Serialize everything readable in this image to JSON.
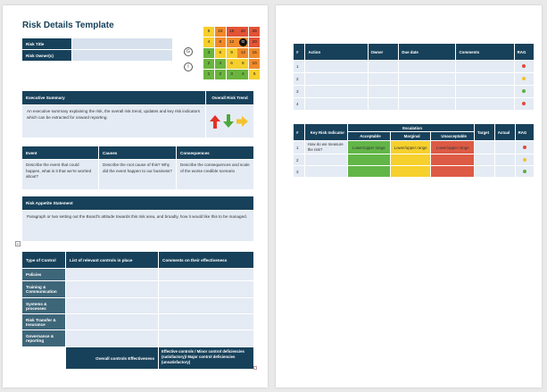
{
  "page1": {
    "title": "Risk Details Template",
    "risk_title_label": "Risk Title",
    "risk_owner_label": "Risk Owner(s)",
    "heatmap": {
      "rows": [
        [
          "5",
          "10",
          "15",
          "20",
          "25"
        ],
        [
          "4",
          "8",
          "12",
          "G",
          "20"
        ],
        [
          "3",
          "6",
          "9",
          "12",
          "15"
        ],
        [
          "2",
          "4",
          "6",
          "8",
          "10"
        ],
        [
          "1",
          "2",
          "3",
          "4",
          "5"
        ]
      ],
      "gross_marker": "G",
      "inherent_marker": "I"
    },
    "exec_summary": {
      "label": "Executive Summary",
      "trend_label": "Overall Risk Trend",
      "text": "An executive summary explaining the risk, the overall risk trend, updates and key risk indicators which can be extracted for onward reporting."
    },
    "event": {
      "label": "Event",
      "text": "Describe the event that could happen, what is it that we're worried about?"
    },
    "causes": {
      "label": "Causes",
      "text": "Describe the root cause of this? Why did the event happen to our business?"
    },
    "consequences": {
      "label": "Consequences",
      "text": "Describe the consequences and scale of the worse credible scenario"
    },
    "appetite": {
      "label": "Risk Appetite Statement",
      "text": "Paragraph or two setting out the Board's attitude towards this risk area, and broadly, how it would like this to be managed."
    },
    "controls": {
      "col1": "Type of Control",
      "col2": "List of relevant controls in place",
      "col3": "Comments on their effectiveness",
      "types": [
        "Policies",
        "Training & Communication",
        "Systems & processes",
        "Risk Transfer & Insurance",
        "Governance & reporting"
      ],
      "overall_label": "Overall controls Effectiveness",
      "overall_text": "Effective controls / Minor control deficiencies (satisfactory)/ Major control deficiencies (unsatisfactory)"
    }
  },
  "page2": {
    "actions": {
      "headers": [
        "#",
        "Action",
        "Owner",
        "Due date",
        "Comments",
        "RAG"
      ],
      "rows": [
        {
          "num": "1",
          "rag": "#e04a3a"
        },
        {
          "num": "2",
          "rag": "#f2c12e"
        },
        {
          "num": "3",
          "rag": "#5bb043"
        },
        {
          "num": "4",
          "rag": "#e04a3a"
        }
      ]
    },
    "kri": {
      "headers": [
        "#",
        "Key Risk Indicator",
        "Escalation",
        "Target",
        "Actual",
        "RAG"
      ],
      "subheaders": [
        "Acceptable",
        "Marginal",
        "Unacceptable"
      ],
      "rows": [
        {
          "num": "1",
          "indicator": "How do we measure the risk?",
          "acceptable": "Lower/upper range",
          "marginal": "Lower/upper range",
          "unacceptable": "Lower/upper range",
          "rag": "#e04a3a"
        },
        {
          "num": "2",
          "indicator": "",
          "acceptable": "",
          "marginal": "",
          "unacceptable": "",
          "rag": "#f2c12e"
        },
        {
          "num": "3",
          "indicator": "",
          "acceptable": "",
          "marginal": "",
          "unacceptable": "",
          "rag": "#5bb043"
        }
      ],
      "colors": {
        "acceptable": "#62b648",
        "marginal": "#f6d02c",
        "unacceptable": "#dd5a45"
      }
    }
  }
}
